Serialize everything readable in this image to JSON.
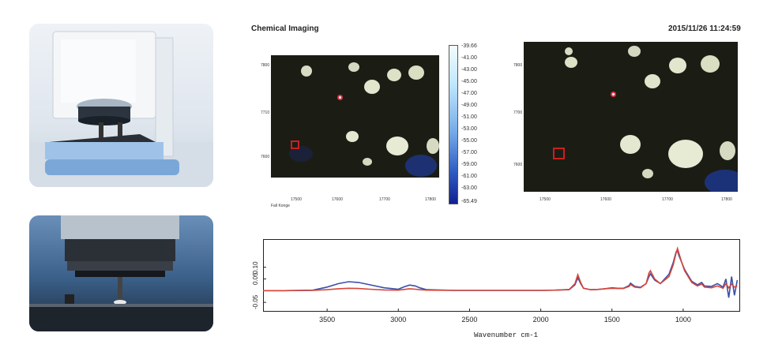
{
  "imaging": {
    "title": "Chemical Imaging",
    "timestamp": "2015/11/26  11:24:59"
  },
  "left_map": {
    "y_ticks": [
      "7800",
      "7710",
      "7600"
    ],
    "x_ticks": [
      "17500",
      "17600",
      "17700",
      "17800"
    ],
    "x_caption": "Fall Konge"
  },
  "right_map": {
    "y_ticks": [
      "7800",
      "7700",
      "7600"
    ],
    "x_ticks": [
      "17500",
      "17600",
      "17700",
      "17800"
    ]
  },
  "colorbar": {
    "labels": [
      "-39.66",
      "-41.00",
      "-43.00",
      "-45.00",
      "-47.00",
      "-49.00",
      "-51.00",
      "-53.00",
      "-55.00",
      "-57.00",
      "-59.00",
      "-61.00",
      "-63.00",
      "-65.49"
    ]
  },
  "chart_data": {
    "type": "line",
    "xlabel": "Wavenumber cm-1",
    "x_ticks": [
      3500,
      3000,
      2500,
      2000,
      1500,
      1000
    ],
    "y_ticks": [
      0.1,
      0.05,
      -0.05
    ],
    "y_tick_labels": [
      "0.10",
      "0.05",
      "-0.05"
    ],
    "xlim": [
      3950,
      600
    ],
    "ylim": [
      -0.09,
      0.22
    ],
    "series": [
      {
        "color": "#3b4fa8",
        "x": [
          3950,
          3800,
          3600,
          3500,
          3420,
          3350,
          3280,
          3200,
          3100,
          3000,
          2960,
          2920,
          2880,
          2850,
          2800,
          2600,
          2400,
          2200,
          2000,
          1900,
          1800,
          1760,
          1740,
          1720,
          1700,
          1650,
          1600,
          1550,
          1500,
          1460,
          1420,
          1380,
          1370,
          1340,
          1300,
          1260,
          1240,
          1230,
          1200,
          1160,
          1100,
          1070,
          1050,
          1040,
          1030,
          1010,
          990,
          960,
          940,
          900,
          870,
          850,
          800,
          760,
          720,
          700,
          680,
          660,
          640,
          620
        ],
        "y": [
          0,
          0,
          0.002,
          0.015,
          0.03,
          0.038,
          0.035,
          0.025,
          0.012,
          0.006,
          0.016,
          0.024,
          0.02,
          0.012,
          0.004,
          0.001,
          0.001,
          0.001,
          0.001,
          0.002,
          0.004,
          0.025,
          0.055,
          0.03,
          0.01,
          0.004,
          0.005,
          0.008,
          0.012,
          0.01,
          0.01,
          0.022,
          0.032,
          0.018,
          0.014,
          0.03,
          0.06,
          0.072,
          0.045,
          0.03,
          0.07,
          0.12,
          0.165,
          0.17,
          0.15,
          0.12,
          0.09,
          0.06,
          0.04,
          0.025,
          0.035,
          0.02,
          0.018,
          0.03,
          0.015,
          0.05,
          -0.03,
          0.06,
          -0.02,
          0.045
        ]
      },
      {
        "color": "#d6463a",
        "x": [
          3950,
          3800,
          3600,
          3500,
          3420,
          3350,
          3280,
          3200,
          3100,
          3000,
          2960,
          2920,
          2880,
          2850,
          2800,
          2600,
          2400,
          2200,
          2000,
          1900,
          1800,
          1760,
          1740,
          1720,
          1700,
          1650,
          1600,
          1550,
          1500,
          1460,
          1420,
          1380,
          1370,
          1340,
          1300,
          1260,
          1240,
          1230,
          1200,
          1160,
          1100,
          1070,
          1050,
          1040,
          1030,
          1010,
          990,
          960,
          940,
          900,
          870,
          850,
          800,
          760,
          720,
          700,
          680,
          660,
          640,
          620
        ],
        "y": [
          0,
          0,
          0.001,
          0.004,
          0.008,
          0.01,
          0.009,
          0.006,
          0.003,
          0.002,
          0.005,
          0.008,
          0.006,
          0.004,
          0.002,
          0.001,
          0.001,
          0.001,
          0.001,
          0.002,
          0.005,
          0.03,
          0.068,
          0.035,
          0.01,
          0.004,
          0.005,
          0.008,
          0.01,
          0.009,
          0.009,
          0.018,
          0.026,
          0.015,
          0.012,
          0.03,
          0.075,
          0.085,
          0.05,
          0.03,
          0.06,
          0.11,
          0.16,
          0.18,
          0.16,
          0.12,
          0.085,
          0.055,
          0.035,
          0.02,
          0.028,
          0.015,
          0.012,
          0.02,
          0.01,
          0.03,
          0.012,
          0.028,
          0.015,
          0.02
        ]
      }
    ]
  }
}
